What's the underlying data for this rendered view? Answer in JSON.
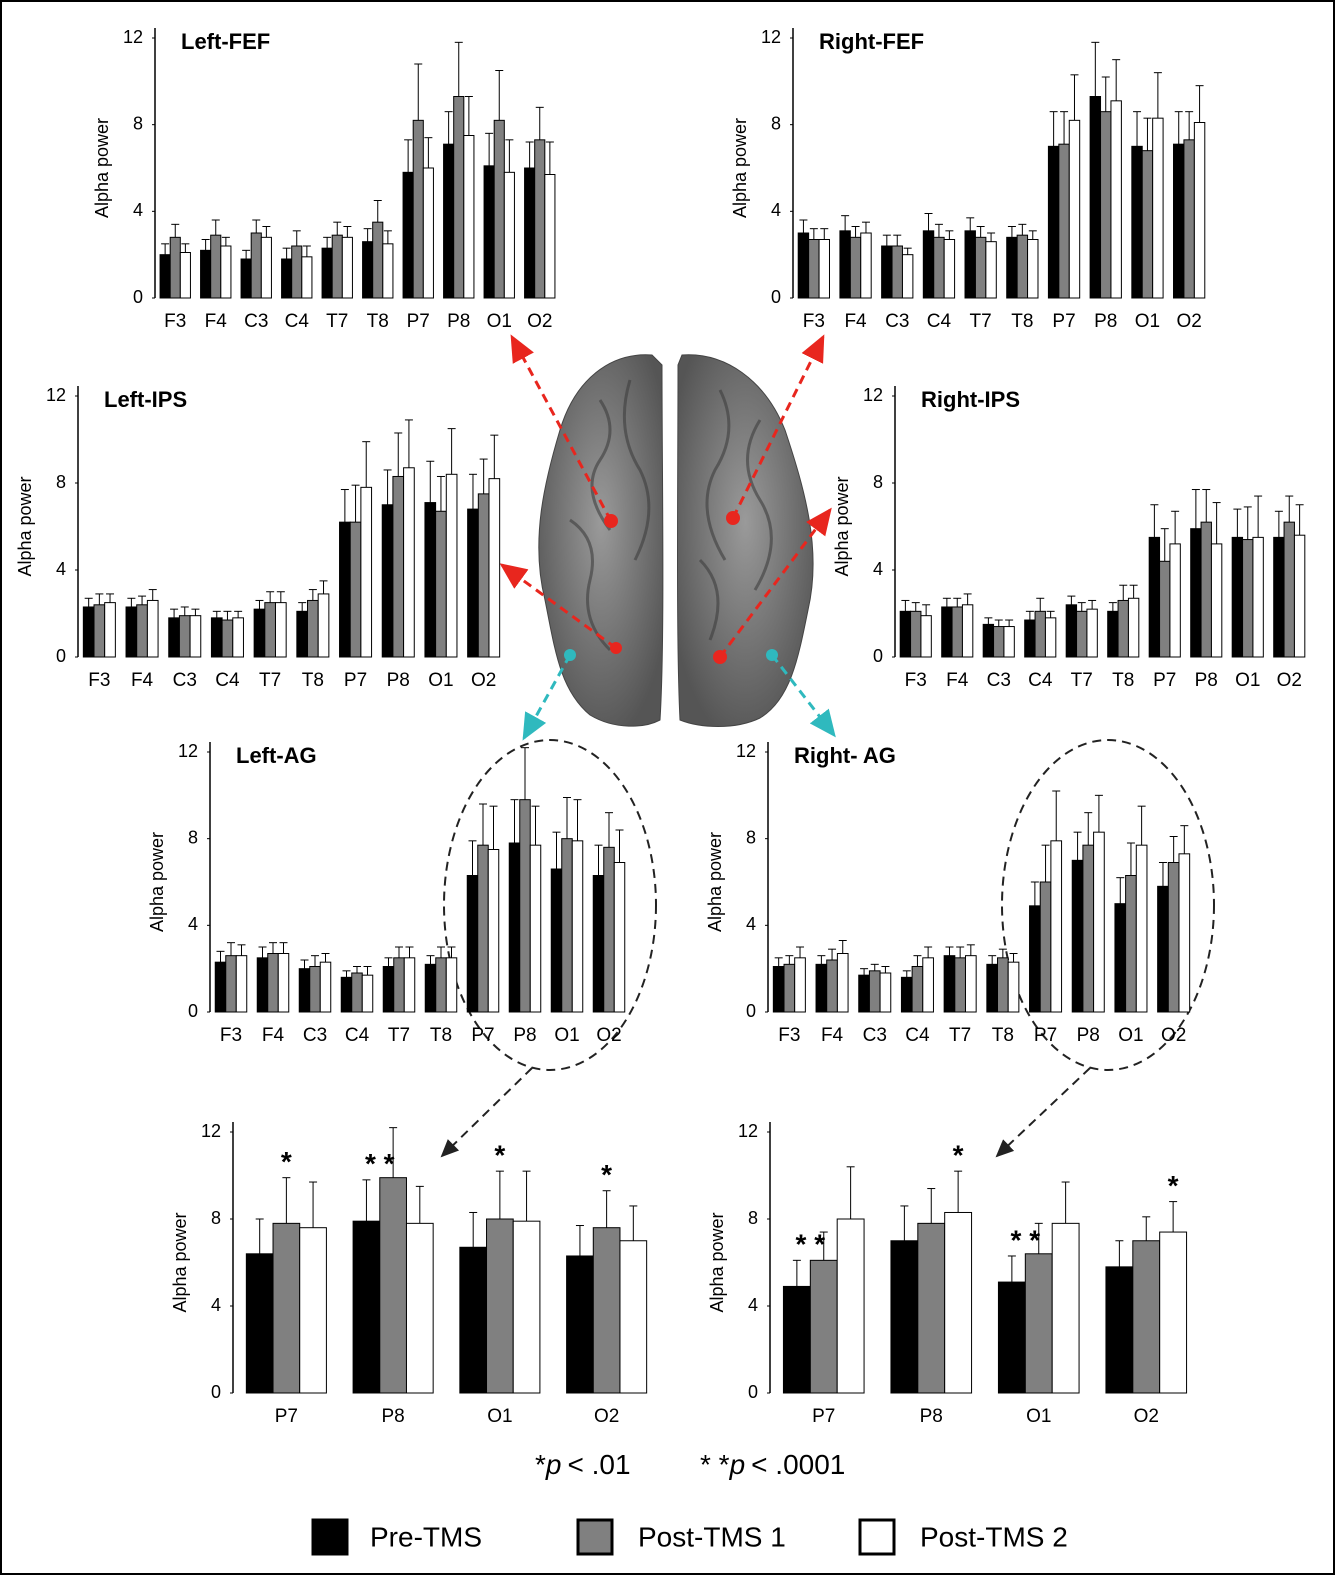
{
  "chart_data": [
    {
      "type": "bar",
      "title": "Left-FEF",
      "y_label": "Alpha power",
      "categories": [
        "F3",
        "F4",
        "C3",
        "C4",
        "T7",
        "T8",
        "P7",
        "P8",
        "O1",
        "O2"
      ],
      "ylim": [
        0,
        12
      ],
      "yticks": [
        0,
        4,
        8,
        12
      ],
      "series": [
        {
          "values": [
            2.0,
            2.2,
            1.8,
            1.8,
            2.3,
            2.6,
            5.8,
            7.1,
            6.1,
            6.0
          ],
          "errors": [
            0.5,
            0.5,
            0.4,
            0.5,
            0.5,
            0.6,
            1.5,
            1.5,
            1.5,
            1.2
          ]
        },
        {
          "values": [
            2.8,
            2.9,
            3.0,
            2.4,
            2.9,
            3.5,
            8.2,
            9.3,
            8.2,
            7.3
          ],
          "errors": [
            0.6,
            0.7,
            0.6,
            0.7,
            0.6,
            1.0,
            2.6,
            2.5,
            2.3,
            1.5
          ]
        },
        {
          "values": [
            2.1,
            2.4,
            2.8,
            1.9,
            2.8,
            2.5,
            6.0,
            7.5,
            5.8,
            5.7
          ],
          "errors": [
            0.4,
            0.4,
            0.5,
            0.5,
            0.5,
            0.6,
            1.4,
            1.8,
            1.5,
            1.5
          ]
        }
      ]
    },
    {
      "type": "bar",
      "title": "Right-FEF",
      "y_label": "Alpha power",
      "categories": [
        "F3",
        "F4",
        "C3",
        "C4",
        "T7",
        "T8",
        "P7",
        "P8",
        "O1",
        "O2"
      ],
      "ylim": [
        0,
        12
      ],
      "yticks": [
        0,
        4,
        8,
        12
      ],
      "series": [
        {
          "values": [
            3.0,
            3.1,
            2.4,
            3.1,
            3.1,
            2.8,
            7.0,
            9.3,
            7.0,
            7.1
          ],
          "errors": [
            0.6,
            0.7,
            0.5,
            0.8,
            0.6,
            0.5,
            1.6,
            2.5,
            1.6,
            1.5
          ]
        },
        {
          "values": [
            2.7,
            2.8,
            2.4,
            2.8,
            2.8,
            2.9,
            7.1,
            8.6,
            6.8,
            7.3
          ],
          "errors": [
            0.5,
            0.5,
            0.5,
            0.6,
            0.5,
            0.5,
            1.5,
            1.6,
            1.5,
            1.3
          ]
        },
        {
          "values": [
            2.7,
            3.0,
            2.0,
            2.7,
            2.6,
            2.7,
            8.2,
            9.1,
            8.3,
            8.1
          ],
          "errors": [
            0.5,
            0.5,
            0.3,
            0.4,
            0.4,
            0.4,
            2.1,
            1.9,
            2.1,
            1.7
          ]
        }
      ]
    },
    {
      "type": "bar",
      "title": "Left-IPS",
      "y_label": "Alpha power",
      "categories": [
        "F3",
        "F4",
        "C3",
        "C4",
        "T7",
        "T8",
        "P7",
        "P8",
        "O1",
        "O2"
      ],
      "ylim": [
        0,
        12
      ],
      "yticks": [
        0,
        4,
        8,
        12
      ],
      "series": [
        {
          "values": [
            2.3,
            2.3,
            1.8,
            1.8,
            2.2,
            2.1,
            6.2,
            7.0,
            7.1,
            6.8
          ],
          "errors": [
            0.4,
            0.4,
            0.4,
            0.3,
            0.4,
            0.4,
            1.5,
            1.6,
            1.9,
            1.6
          ]
        },
        {
          "values": [
            2.4,
            2.4,
            1.9,
            1.7,
            2.5,
            2.6,
            6.2,
            8.3,
            6.7,
            7.5
          ],
          "errors": [
            0.5,
            0.4,
            0.4,
            0.4,
            0.5,
            0.5,
            1.7,
            2.0,
            1.6,
            1.6
          ]
        },
        {
          "values": [
            2.5,
            2.6,
            1.9,
            1.8,
            2.5,
            2.9,
            7.8,
            8.7,
            8.4,
            8.2
          ],
          "errors": [
            0.4,
            0.5,
            0.3,
            0.3,
            0.5,
            0.6,
            2.1,
            2.2,
            2.1,
            2.0
          ]
        }
      ]
    },
    {
      "type": "bar",
      "title": "Right-IPS",
      "y_label": "Alpha power",
      "categories": [
        "F3",
        "F4",
        "C3",
        "C4",
        "T7",
        "T8",
        "P7",
        "P8",
        "O1",
        "O2"
      ],
      "ylim": [
        0,
        12
      ],
      "yticks": [
        0,
        4,
        8,
        12
      ],
      "series": [
        {
          "values": [
            2.1,
            2.3,
            1.5,
            1.7,
            2.4,
            2.1,
            5.5,
            5.9,
            5.5,
            5.5
          ],
          "errors": [
            0.5,
            0.4,
            0.3,
            0.4,
            0.4,
            0.4,
            1.5,
            1.8,
            1.3,
            1.2
          ]
        },
        {
          "values": [
            2.1,
            2.3,
            1.4,
            2.1,
            2.1,
            2.6,
            4.4,
            6.2,
            5.4,
            6.2
          ],
          "errors": [
            0.4,
            0.4,
            0.3,
            0.6,
            0.4,
            0.7,
            1.5,
            1.5,
            1.5,
            1.2
          ]
        },
        {
          "values": [
            1.9,
            2.4,
            1.4,
            1.8,
            2.2,
            2.7,
            5.2,
            5.2,
            5.5,
            5.6
          ],
          "errors": [
            0.5,
            0.5,
            0.3,
            0.3,
            0.4,
            0.6,
            1.5,
            1.9,
            1.9,
            1.4
          ]
        }
      ]
    },
    {
      "type": "bar",
      "title": "Left-AG",
      "y_label": "Alpha power",
      "categories": [
        "F3",
        "F4",
        "C3",
        "C4",
        "T7",
        "T8",
        "P7",
        "P8",
        "O1",
        "O2"
      ],
      "ylim": [
        0,
        12
      ],
      "yticks": [
        0,
        4,
        8,
        12
      ],
      "series": [
        {
          "values": [
            2.3,
            2.5,
            2.0,
            1.6,
            2.1,
            2.2,
            6.3,
            7.8,
            6.6,
            6.3
          ],
          "errors": [
            0.5,
            0.5,
            0.4,
            0.3,
            0.4,
            0.4,
            1.6,
            2.0,
            1.7,
            1.4
          ]
        },
        {
          "values": [
            2.6,
            2.7,
            2.1,
            1.8,
            2.5,
            2.5,
            7.7,
            9.8,
            8.0,
            7.6
          ],
          "errors": [
            0.6,
            0.5,
            0.5,
            0.3,
            0.5,
            0.5,
            1.9,
            2.4,
            1.9,
            1.6
          ]
        },
        {
          "values": [
            2.6,
            2.7,
            2.3,
            1.7,
            2.5,
            2.5,
            7.5,
            7.7,
            7.9,
            6.9
          ],
          "errors": [
            0.5,
            0.5,
            0.4,
            0.4,
            0.5,
            0.5,
            2.0,
            1.8,
            1.9,
            1.5
          ]
        }
      ]
    },
    {
      "type": "bar",
      "title": "Right- AG",
      "y_label": "Alpha power",
      "categories": [
        "F3",
        "F4",
        "C3",
        "C4",
        "T7",
        "T8",
        "P7",
        "P8",
        "O1",
        "O2"
      ],
      "ylim": [
        0,
        12
      ],
      "yticks": [
        0,
        4,
        8,
        12
      ],
      "series": [
        {
          "values": [
            2.1,
            2.2,
            1.7,
            1.6,
            2.6,
            2.2,
            4.9,
            7.0,
            5.0,
            5.8
          ],
          "errors": [
            0.4,
            0.4,
            0.3,
            0.3,
            0.4,
            0.4,
            1.1,
            1.3,
            1.2,
            1.1
          ]
        },
        {
          "values": [
            2.2,
            2.4,
            1.9,
            2.1,
            2.5,
            2.5,
            6.0,
            7.7,
            6.3,
            6.9
          ],
          "errors": [
            0.4,
            0.5,
            0.3,
            0.5,
            0.5,
            0.4,
            1.7,
            1.5,
            1.5,
            1.2
          ]
        },
        {
          "values": [
            2.5,
            2.7,
            1.8,
            2.5,
            2.6,
            2.3,
            7.9,
            8.3,
            7.7,
            7.3
          ],
          "errors": [
            0.5,
            0.6,
            0.3,
            0.5,
            0.5,
            0.4,
            2.3,
            1.7,
            1.8,
            1.3
          ]
        }
      ]
    },
    {
      "type": "bar",
      "y_label": "Alpha power",
      "categories": [
        "P7",
        "P8",
        "O1",
        "O2"
      ],
      "ylim": [
        0,
        12
      ],
      "yticks": [
        0,
        4,
        8,
        12
      ],
      "series": [
        {
          "values": [
            6.4,
            7.9,
            6.7,
            6.3
          ],
          "errors": [
            1.6,
            1.9,
            1.6,
            1.4
          ],
          "marks": [
            null,
            "* *",
            null,
            null
          ]
        },
        {
          "values": [
            7.8,
            9.9,
            8.0,
            7.6
          ],
          "errors": [
            2.1,
            2.3,
            2.2,
            1.7
          ],
          "marks": [
            "*",
            null,
            "*",
            "*"
          ]
        },
        {
          "values": [
            7.6,
            7.8,
            7.9,
            7.0
          ],
          "errors": [
            2.1,
            1.7,
            2.3,
            1.6
          ],
          "marks": [
            null,
            null,
            null,
            null
          ]
        }
      ]
    },
    {
      "type": "bar",
      "y_label": "Alpha power",
      "categories": [
        "P7",
        "P8",
        "O1",
        "O2"
      ],
      "ylim": [
        0,
        12
      ],
      "yticks": [
        0,
        4,
        8,
        12
      ],
      "series": [
        {
          "values": [
            4.9,
            7.0,
            5.1,
            5.8
          ],
          "errors": [
            1.2,
            1.6,
            1.2,
            1.2
          ],
          "marks": [
            "* *",
            null,
            "* *",
            null
          ]
        },
        {
          "values": [
            6.1,
            7.8,
            6.4,
            7.0
          ],
          "errors": [
            1.3,
            1.6,
            1.4,
            1.1
          ],
          "marks": [
            null,
            null,
            null,
            null
          ]
        },
        {
          "values": [
            8.0,
            8.3,
            7.8,
            7.4
          ],
          "errors": [
            2.4,
            1.9,
            1.9,
            1.4
          ],
          "marks": [
            null,
            "*",
            null,
            "*"
          ]
        }
      ]
    }
  ],
  "footnote": [
    {
      "star": "*",
      "p": "p",
      "rest": "< .01"
    },
    {
      "star": "* *",
      "p": "p",
      "rest": "< .0001"
    }
  ],
  "legend": [
    {
      "name": "Pre-TMS",
      "color": "#000000"
    },
    {
      "name": "Post-TMS 1",
      "color": "#808080"
    },
    {
      "name": "Post-TMS 2",
      "color": "#ffffff"
    }
  ]
}
